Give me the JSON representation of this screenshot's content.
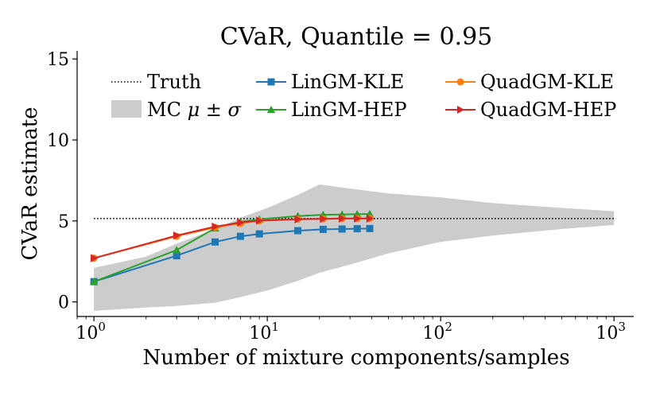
{
  "chart_data": {
    "type": "line",
    "title": "CVaR, Quantile = 0.95",
    "xlabel": "Number of mixture components/samples",
    "ylabel": "CVaR estimate",
    "xscale": "log",
    "xlim": [
      0.8,
      1300
    ],
    "ylim": [
      -0.9,
      15.5
    ],
    "yticks": [
      0,
      5,
      10,
      15
    ],
    "ytick_labels": [
      "0",
      "5",
      "10",
      "15"
    ],
    "xticks": [
      1,
      10,
      100,
      1000
    ],
    "xtick_labels": [
      {
        "base": "10",
        "exp": "0"
      },
      {
        "base": "10",
        "exp": "1"
      },
      {
        "base": "10",
        "exp": "2"
      },
      {
        "base": "10",
        "exp": "3"
      }
    ],
    "truth": {
      "name": "Truth",
      "value": 5.15,
      "color": "#000000"
    },
    "band": {
      "name_prefix": "MC",
      "name_math": "μ ± σ",
      "color": "#cccccc",
      "x": [
        1,
        2,
        3,
        5,
        7,
        10,
        15,
        20,
        30,
        50,
        100,
        200,
        500,
        1000
      ],
      "lower": [
        -0.55,
        -0.35,
        -0.25,
        -0.05,
        0.3,
        0.7,
        1.3,
        1.8,
        2.3,
        3.0,
        3.7,
        4.1,
        4.5,
        4.75
      ],
      "upper": [
        2.1,
        2.8,
        3.6,
        4.5,
        5.2,
        5.8,
        6.6,
        7.25,
        7.0,
        6.7,
        6.45,
        6.1,
        5.8,
        5.6
      ]
    },
    "series": [
      {
        "name": "LinGM-KLE",
        "color": "#1f77b4",
        "marker": "square",
        "x": [
          1,
          3,
          5,
          7,
          9,
          15,
          21,
          27,
          33,
          39
        ],
        "values": [
          1.25,
          2.85,
          3.7,
          4.05,
          4.2,
          4.4,
          4.48,
          4.5,
          4.52,
          4.53
        ]
      },
      {
        "name": "LinGM-HEP",
        "color": "#2ca02c",
        "marker": "triangle-up",
        "x": [
          1,
          3,
          5,
          7,
          9,
          15,
          21,
          27,
          33,
          39
        ],
        "values": [
          1.25,
          3.2,
          4.55,
          4.95,
          5.1,
          5.3,
          5.38,
          5.4,
          5.42,
          5.43
        ]
      },
      {
        "name": "QuadGM-KLE",
        "color": "#ff7f0e",
        "marker": "circle",
        "x": [
          1,
          3,
          5,
          7,
          9,
          15,
          21,
          27,
          33,
          39
        ],
        "values": [
          2.7,
          4.05,
          4.6,
          4.85,
          5.0,
          5.1,
          5.13,
          5.14,
          5.15,
          5.15
        ]
      },
      {
        "name": "QuadGM-HEP",
        "color": "#d62728",
        "marker": "triangle-right",
        "x": [
          1,
          3,
          5,
          7,
          9,
          15,
          21,
          27,
          33,
          39
        ],
        "values": [
          2.7,
          4.1,
          4.65,
          4.9,
          5.02,
          5.1,
          5.13,
          5.15,
          5.15,
          5.15
        ]
      }
    ],
    "legend": {
      "position": "top-left",
      "columns": 3
    }
  }
}
